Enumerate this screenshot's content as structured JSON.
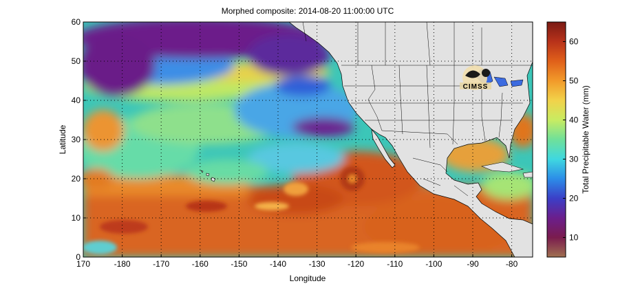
{
  "title": "Morphed composite: 2014-08-20 11:00:00 UTC",
  "map": {
    "xlabel": "Longitude",
    "ylabel": "Latitude",
    "x_ticks": [
      "170",
      "-180",
      "-170",
      "-160",
      "-150",
      "-140",
      "-130",
      "-120",
      "-110",
      "-100",
      "-90",
      "-80"
    ],
    "y_ticks": [
      "0",
      "10",
      "20",
      "30",
      "40",
      "50",
      "60"
    ],
    "lon_range": [
      170,
      -75
    ],
    "lat_range": [
      0,
      60
    ],
    "grid": "dotted",
    "land_color": "#e2e2e2",
    "logo_text": "CIMSS"
  },
  "colorbar": {
    "label": "Total Precipitable Water (mm)",
    "ticks": [
      "10",
      "20",
      "30",
      "40",
      "50",
      "60"
    ],
    "range": [
      5,
      65
    ],
    "colors": [
      "#a07050",
      "#7a1c4e",
      "#6b1e8c",
      "#3b3fc7",
      "#2c8de8",
      "#3fd8e0",
      "#6fe09a",
      "#c8ec62",
      "#f2d24a",
      "#f29a2a",
      "#e0601a",
      "#b8321a",
      "#7a1a14"
    ]
  }
}
